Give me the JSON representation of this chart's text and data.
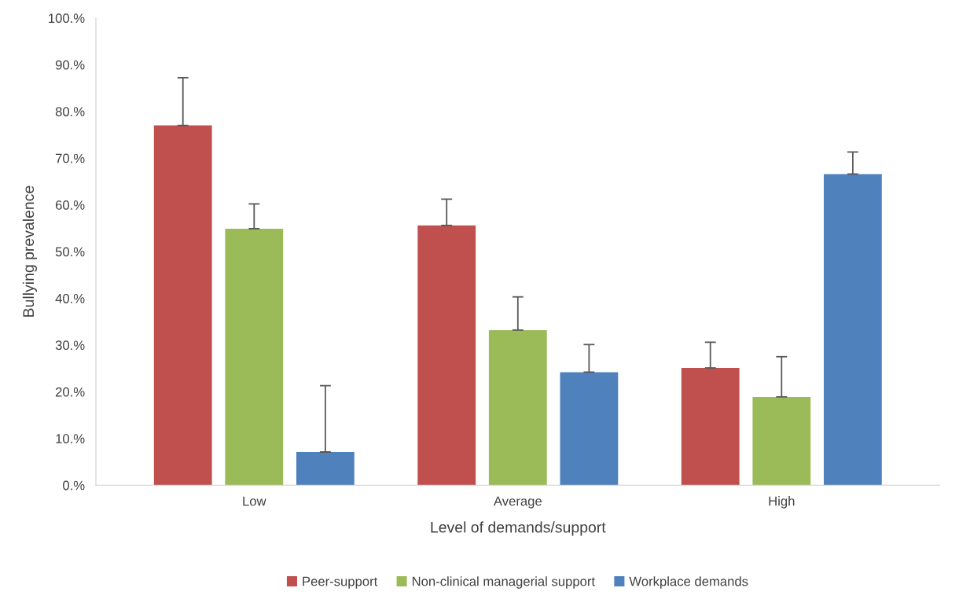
{
  "chart_data": {
    "type": "bar",
    "xlabel": "Level of demands/support",
    "ylabel": "Bullying prevalence",
    "categories": [
      "Low",
      "Average",
      "High"
    ],
    "series": [
      {
        "name": "Peer-support",
        "color": "#c0504d",
        "values": [
          77.0,
          55.6,
          25.1
        ],
        "errors": [
          [
            77.0,
            87.2
          ],
          [
            55.6,
            61.2
          ],
          [
            25.1,
            30.6
          ]
        ]
      },
      {
        "name": "Non-clinical managerial support",
        "color": "#9bbb59",
        "values": [
          54.9,
          33.2,
          18.9
        ],
        "errors": [
          [
            54.9,
            60.2
          ],
          [
            33.2,
            40.3
          ],
          [
            18.9,
            27.5
          ]
        ]
      },
      {
        "name": "Workplace demands",
        "color": "#4f81bd",
        "values": [
          7.1,
          24.2,
          66.6
        ],
        "errors": [
          [
            7.1,
            21.3
          ],
          [
            24.2,
            30.1
          ],
          [
            66.6,
            71.3
          ]
        ]
      }
    ],
    "ylim": [
      0,
      100
    ],
    "yticks": [
      {
        "value": 0,
        "label": "0.%"
      },
      {
        "value": 10,
        "label": "10.%"
      },
      {
        "value": 20,
        "label": "20.%"
      },
      {
        "value": 30,
        "label": "30.%"
      },
      {
        "value": 40,
        "label": "40.%"
      },
      {
        "value": 50,
        "label": "50.%"
      },
      {
        "value": 60,
        "label": "60.%"
      },
      {
        "value": 70,
        "label": "70.%"
      },
      {
        "value": 80,
        "label": "80.%"
      },
      {
        "value": 90,
        "label": "90.%"
      },
      {
        "value": 100,
        "label": "100.%"
      }
    ],
    "grid": false,
    "legend": "bottom"
  }
}
